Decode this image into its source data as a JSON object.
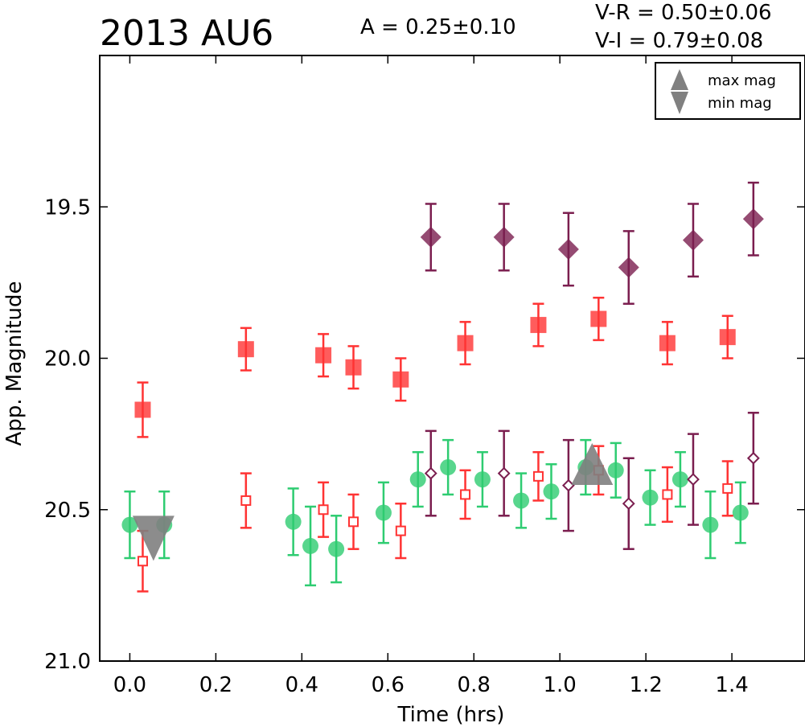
{
  "header": {
    "title": "2013 AU6",
    "amplitude": "A  = 0.25±0.10",
    "color_vr": "V-R = 0.50±0.06",
    "color_vi": "V-I  = 0.79±0.08"
  },
  "legend": {
    "position": "top-right",
    "items": [
      {
        "label": "max mag",
        "marker": "triangle-up",
        "color": "#808080"
      },
      {
        "label": "min mag",
        "marker": "triangle-down",
        "color": "#808080"
      }
    ]
  },
  "chart_data": {
    "type": "scatter",
    "xlabel": "Time (hrs)",
    "ylabel": "App. Magnitude",
    "xlim": [
      -0.07,
      1.57
    ],
    "ylim": [
      21.0,
      19.0
    ],
    "y_inverted": true,
    "grid": false,
    "xticks": [
      0.0,
      0.2,
      0.4,
      0.6,
      0.8,
      1.0,
      1.2,
      1.4
    ],
    "xtick_labels": [
      "0.0",
      "0.2",
      "0.4",
      "0.6",
      "0.8",
      "1.0",
      "1.2",
      "1.4"
    ],
    "yticks": [
      19.5,
      20.0,
      20.5,
      21.0
    ],
    "ytick_labels": [
      "19.5",
      "20.0",
      "20.5",
      "21.0"
    ],
    "colors": {
      "green": "#2ecc71",
      "red": "#ff3333",
      "purple": "#7b1e4f",
      "gray": "#808080"
    },
    "series": [
      {
        "marker": "circle",
        "filled": true,
        "color": "#2ecc71",
        "points": [
          {
            "x": 0.0,
            "y": 20.55,
            "err": 0.11
          },
          {
            "x": 0.08,
            "y": 20.55,
            "err": 0.11
          },
          {
            "x": 0.38,
            "y": 20.54,
            "err": 0.11
          },
          {
            "x": 0.42,
            "y": 20.62,
            "err": 0.13
          },
          {
            "x": 0.48,
            "y": 20.63,
            "err": 0.11
          },
          {
            "x": 0.59,
            "y": 20.51,
            "err": 0.1
          },
          {
            "x": 0.67,
            "y": 20.4,
            "err": 0.09
          },
          {
            "x": 0.74,
            "y": 20.36,
            "err": 0.09
          },
          {
            "x": 0.82,
            "y": 20.4,
            "err": 0.09
          },
          {
            "x": 0.91,
            "y": 20.47,
            "err": 0.09
          },
          {
            "x": 0.98,
            "y": 20.44,
            "err": 0.09
          },
          {
            "x": 1.06,
            "y": 20.36,
            "err": 0.09
          },
          {
            "x": 1.13,
            "y": 20.37,
            "err": 0.09
          },
          {
            "x": 1.21,
            "y": 20.46,
            "err": 0.09
          },
          {
            "x": 1.28,
            "y": 20.4,
            "err": 0.09
          },
          {
            "x": 1.35,
            "y": 20.55,
            "err": 0.11
          },
          {
            "x": 1.42,
            "y": 20.51,
            "err": 0.1
          }
        ]
      },
      {
        "marker": "square",
        "filled": true,
        "color": "#ff3333",
        "points": [
          {
            "x": 0.03,
            "y": 20.17,
            "err": 0.09
          },
          {
            "x": 0.27,
            "y": 19.97,
            "err": 0.07
          },
          {
            "x": 0.45,
            "y": 19.99,
            "err": 0.07
          },
          {
            "x": 0.52,
            "y": 20.03,
            "err": 0.07
          },
          {
            "x": 0.63,
            "y": 20.07,
            "err": 0.07
          },
          {
            "x": 0.78,
            "y": 19.95,
            "err": 0.07
          },
          {
            "x": 0.95,
            "y": 19.89,
            "err": 0.07
          },
          {
            "x": 1.09,
            "y": 19.87,
            "err": 0.07
          },
          {
            "x": 1.25,
            "y": 19.95,
            "err": 0.07
          },
          {
            "x": 1.39,
            "y": 19.93,
            "err": 0.07
          }
        ]
      },
      {
        "marker": "square",
        "filled": false,
        "color": "#ff3333",
        "points": [
          {
            "x": 0.03,
            "y": 20.67,
            "err": 0.1
          },
          {
            "x": 0.27,
            "y": 20.47,
            "err": 0.09
          },
          {
            "x": 0.45,
            "y": 20.5,
            "err": 0.09
          },
          {
            "x": 0.52,
            "y": 20.54,
            "err": 0.09
          },
          {
            "x": 0.63,
            "y": 20.57,
            "err": 0.09
          },
          {
            "x": 0.78,
            "y": 20.45,
            "err": 0.08
          },
          {
            "x": 0.95,
            "y": 20.39,
            "err": 0.08
          },
          {
            "x": 1.09,
            "y": 20.37,
            "err": 0.08
          },
          {
            "x": 1.25,
            "y": 20.45,
            "err": 0.09
          },
          {
            "x": 1.39,
            "y": 20.43,
            "err": 0.09
          }
        ]
      },
      {
        "marker": "diamond",
        "filled": true,
        "color": "#7b1e4f",
        "points": [
          {
            "x": 0.7,
            "y": 19.6,
            "err": 0.11
          },
          {
            "x": 0.87,
            "y": 19.6,
            "err": 0.11
          },
          {
            "x": 1.02,
            "y": 19.64,
            "err": 0.12
          },
          {
            "x": 1.16,
            "y": 19.7,
            "err": 0.12
          },
          {
            "x": 1.31,
            "y": 19.61,
            "err": 0.12
          },
          {
            "x": 1.45,
            "y": 19.54,
            "err": 0.12
          }
        ]
      },
      {
        "marker": "diamond",
        "filled": false,
        "color": "#7b1e4f",
        "points": [
          {
            "x": 0.7,
            "y": 20.38,
            "err": 0.14
          },
          {
            "x": 0.87,
            "y": 20.38,
            "err": 0.14
          },
          {
            "x": 1.02,
            "y": 20.42,
            "err": 0.15
          },
          {
            "x": 1.16,
            "y": 20.48,
            "err": 0.15
          },
          {
            "x": 1.31,
            "y": 20.4,
            "err": 0.15
          },
          {
            "x": 1.45,
            "y": 20.33,
            "err": 0.15
          }
        ]
      }
    ],
    "extrema": [
      {
        "type": "min mag",
        "marker": "triangle-down",
        "x": 0.055,
        "y": 20.6
      },
      {
        "type": "max mag",
        "marker": "triangle-up",
        "x": 1.075,
        "y": 20.36
      }
    ]
  }
}
